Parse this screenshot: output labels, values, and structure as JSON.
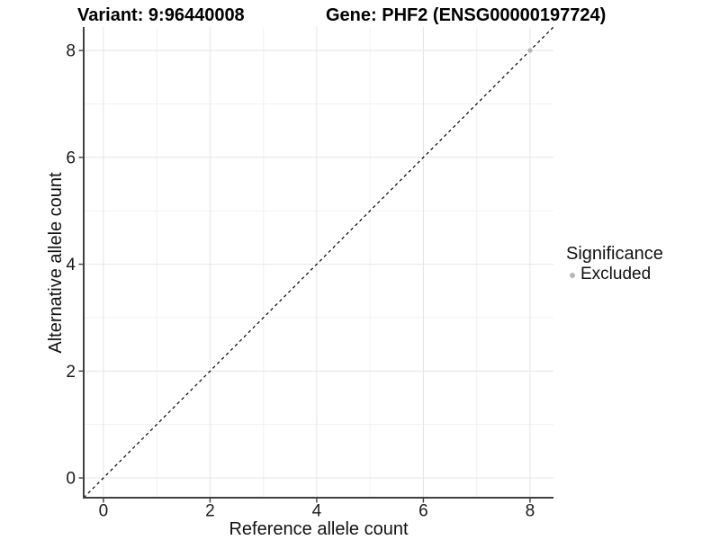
{
  "chart_data": {
    "type": "scatter",
    "title_left": "Variant: 9:96440008",
    "title_right": "Gene: PHF2 (ENSG00000197724)",
    "xlabel": "Reference allele count",
    "ylabel": "Alternative allele count",
    "xlim": [
      -0.37,
      8.44
    ],
    "ylim": [
      -0.37,
      8.44
    ],
    "xticks": [
      0,
      2,
      4,
      6,
      8
    ],
    "yticks": [
      0,
      2,
      4,
      6,
      8
    ],
    "xminor": [
      1,
      3,
      5,
      7
    ],
    "yminor": [
      1,
      3,
      5,
      7
    ],
    "grid": "major and minor gridlines on white panel, axis lines left and bottom only",
    "identity_line": {
      "type": "y=x diagonal",
      "style": "dashed",
      "color": "#000000"
    },
    "series": [
      {
        "name": "Excluded",
        "color": "#b5b5b5",
        "points": [
          [
            8,
            8
          ]
        ]
      }
    ],
    "legend": {
      "title": "Significance",
      "position": "right",
      "items": [
        {
          "label": "Excluded",
          "color": "#b5b5b5",
          "shape": "circle"
        }
      ]
    }
  },
  "style": {
    "background": "#ffffff",
    "grid_major": "#e4e4e4",
    "grid_minor": "#f1f1f1",
    "axis_line": "#404040",
    "tick_color": "#404040",
    "text": "#1a1a1a"
  }
}
